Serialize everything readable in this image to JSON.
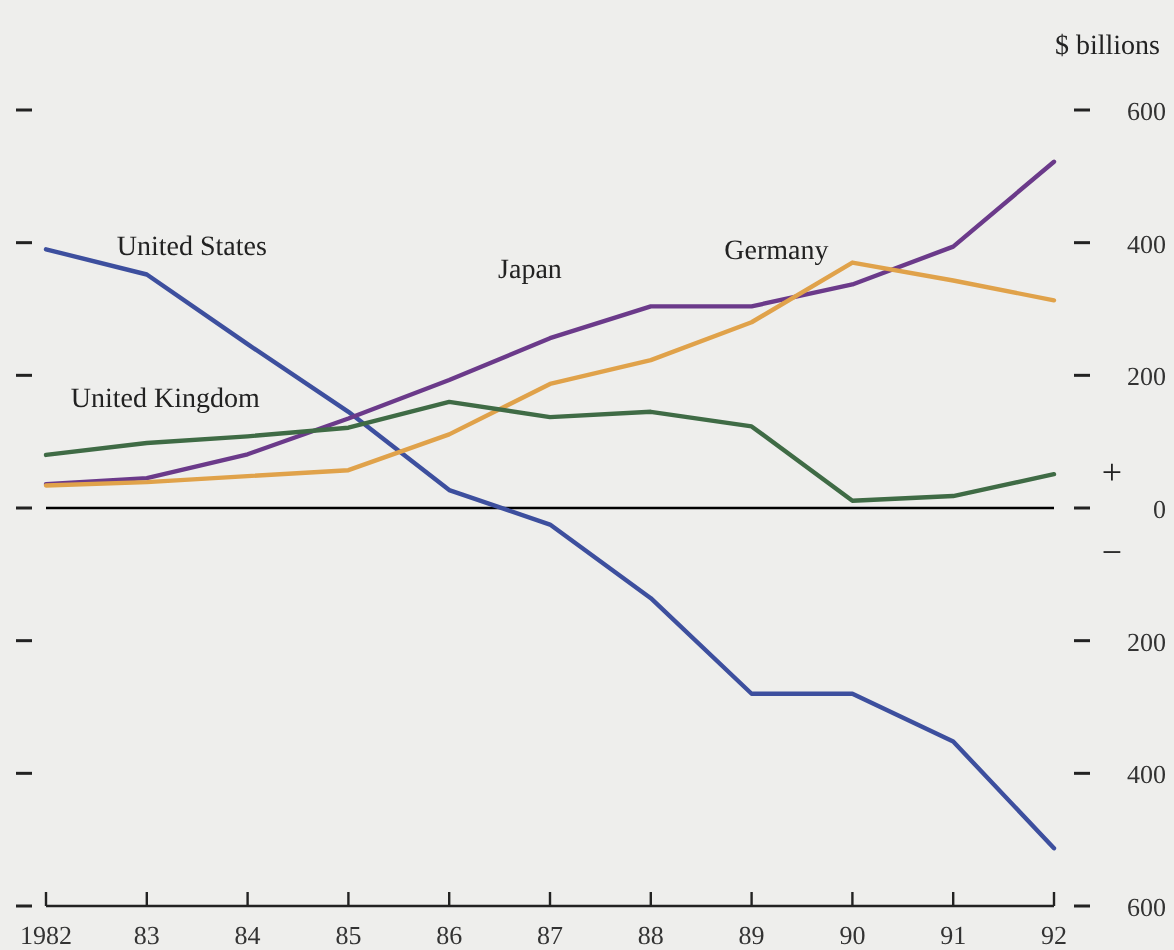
{
  "chart_data": {
    "type": "line",
    "ylabel": "$ billions",
    "categories": [
      "1982",
      "83",
      "84",
      "85",
      "86",
      "87",
      "88",
      "89",
      "90",
      "91",
      "92"
    ],
    "series": [
      {
        "name": "United States",
        "color": "#3d4f9e",
        "values": [
          390,
          352,
          247,
          145,
          27,
          -25,
          -136,
          -280,
          -280,
          -352,
          -513
        ]
      },
      {
        "name": "Japan",
        "color": "#6b3a8a",
        "values": [
          36,
          45,
          81,
          135,
          193,
          256,
          304,
          304,
          337,
          394,
          522
        ]
      },
      {
        "name": "Germany",
        "color": "#e0a24a",
        "values": [
          34,
          39,
          48,
          57,
          111,
          187,
          223,
          280,
          370,
          343,
          313
        ]
      },
      {
        "name": "United Kingdom",
        "color": "#3f6b45",
        "values": [
          80,
          98,
          108,
          121,
          160,
          137,
          145,
          123,
          11,
          18,
          51
        ]
      }
    ],
    "ylim": [
      -600,
      600
    ],
    "yticks": [
      {
        "value": 600,
        "label": "600"
      },
      {
        "value": 400,
        "label": "400"
      },
      {
        "value": 200,
        "label": "200"
      },
      {
        "value": 0,
        "label": "0"
      },
      {
        "value": -200,
        "label": "200"
      },
      {
        "value": -400,
        "label": "400"
      },
      {
        "value": -600,
        "label": "600"
      }
    ],
    "ref_lines": [
      {
        "axis": "y",
        "value": 0,
        "color": "#000000"
      }
    ],
    "annotations": [
      "+",
      "−"
    ],
    "legend": false,
    "grid": false,
    "marker": "none",
    "line_style": "solid",
    "tick_labels": "xy"
  }
}
